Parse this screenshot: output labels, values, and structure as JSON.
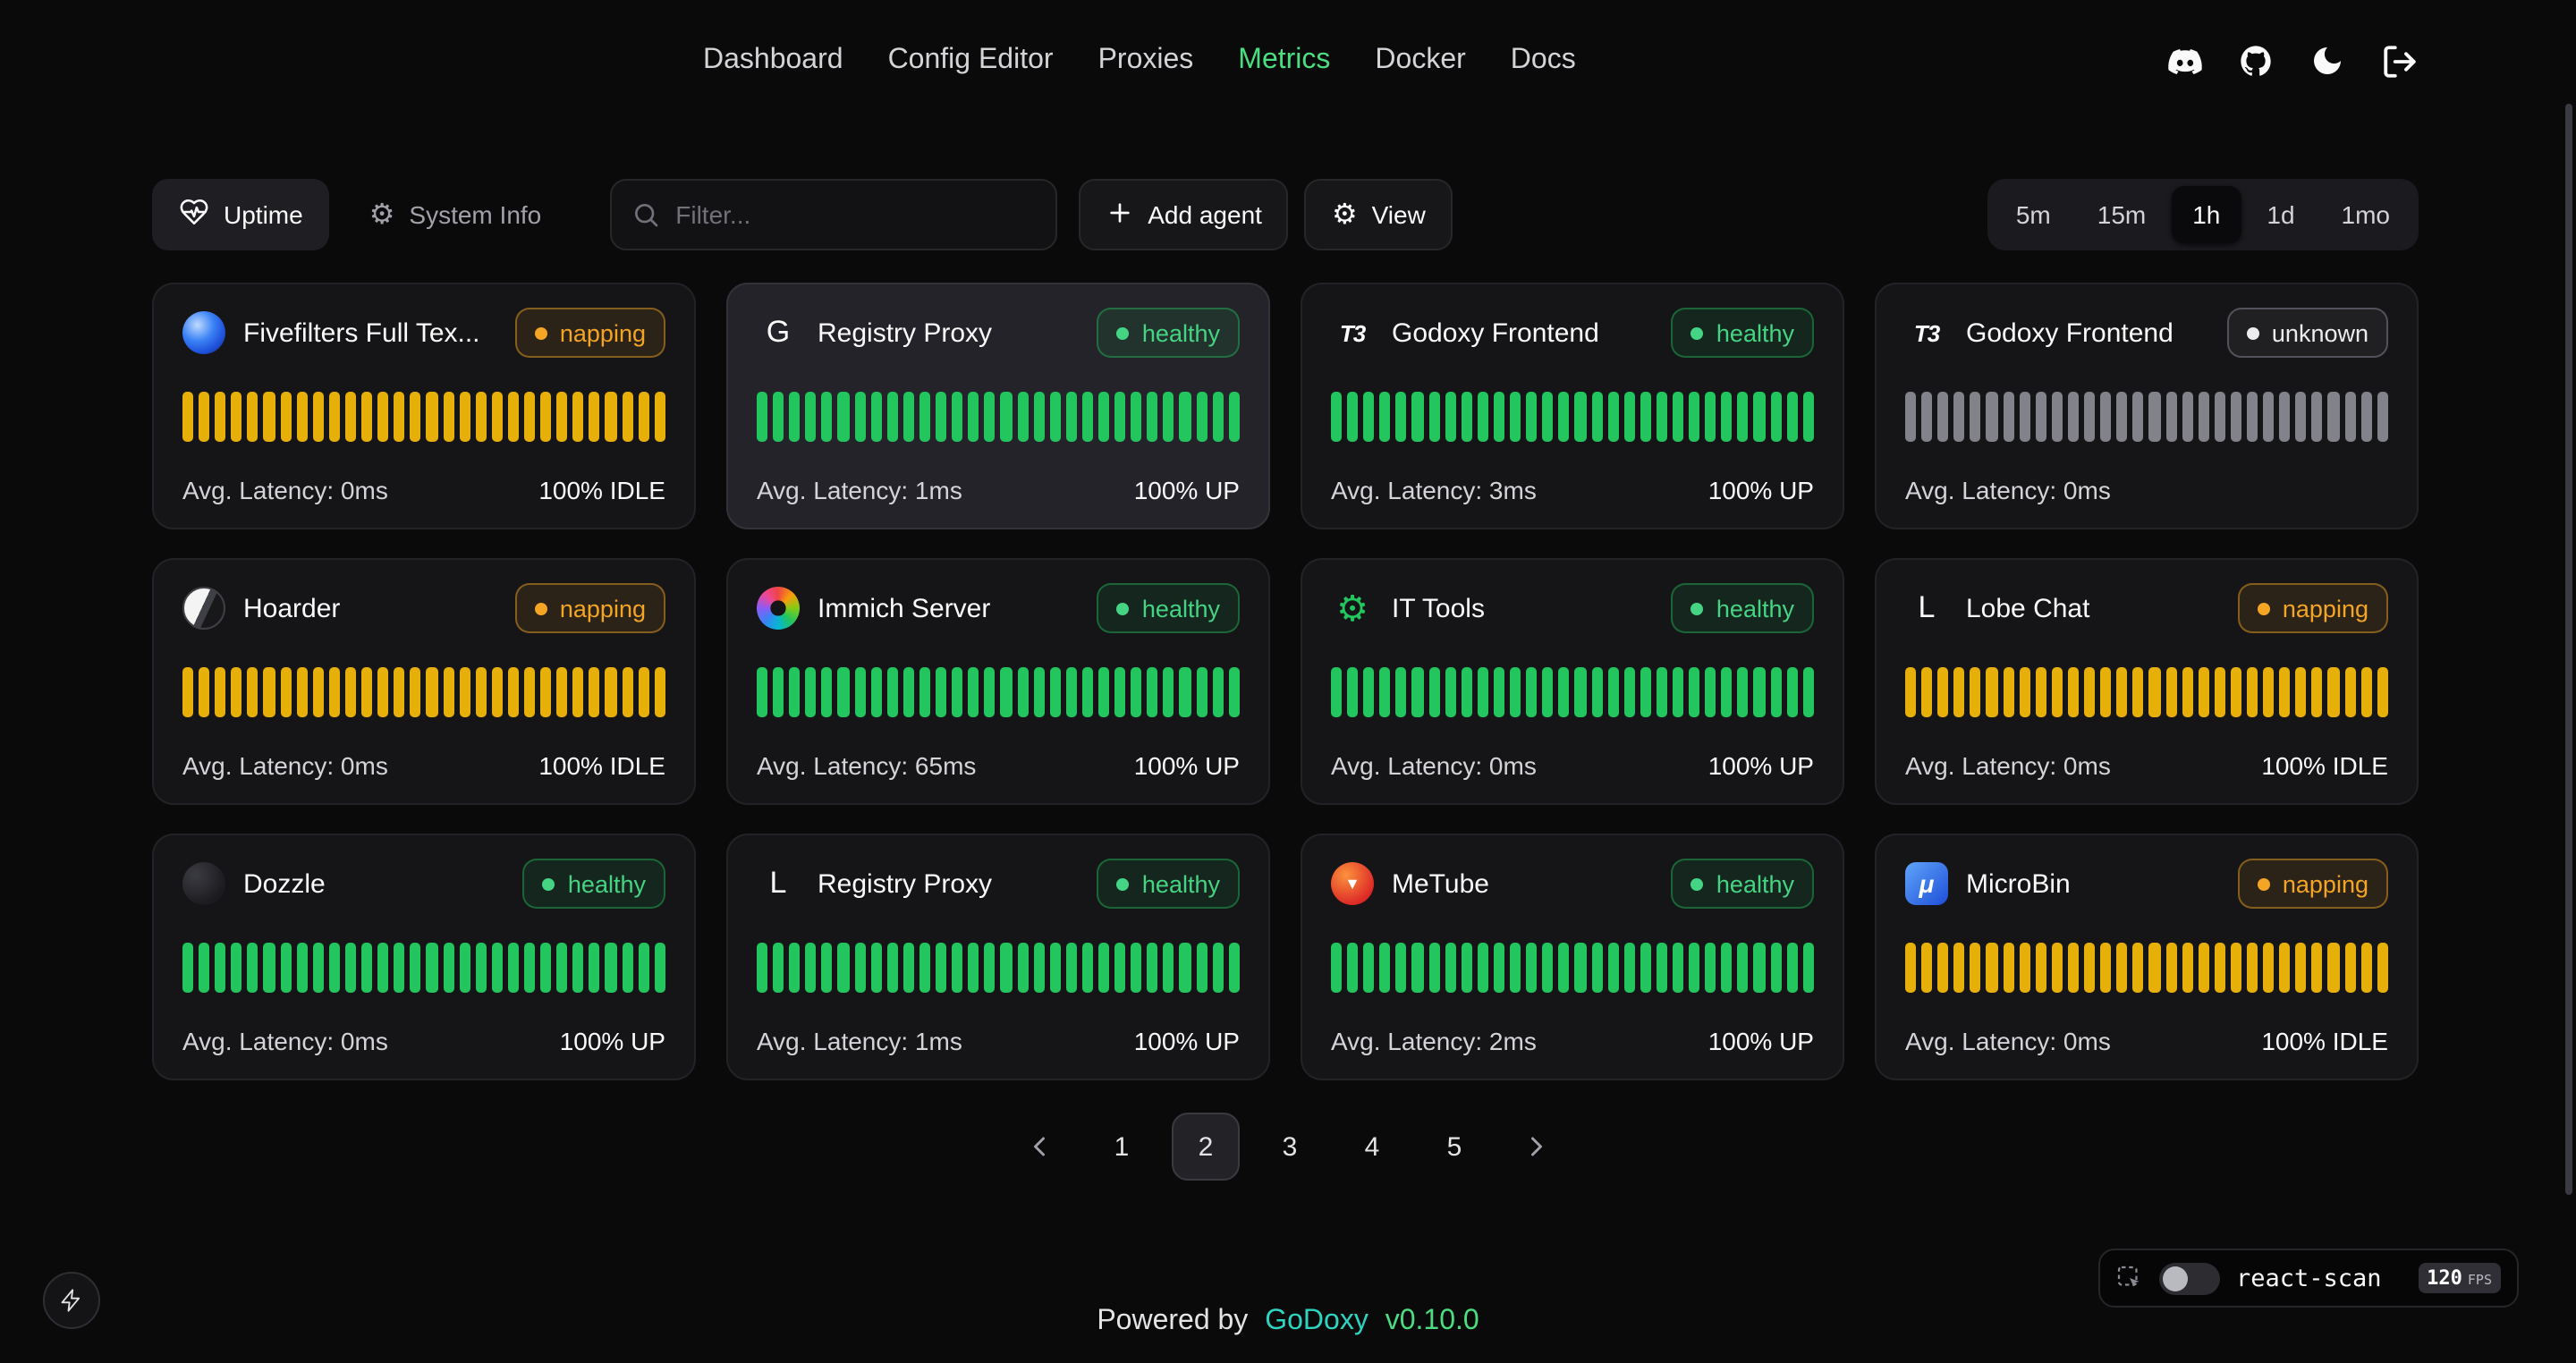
{
  "nav": {
    "items": [
      {
        "label": "Dashboard",
        "active": false
      },
      {
        "label": "Config Editor",
        "active": false
      },
      {
        "label": "Proxies",
        "active": false
      },
      {
        "label": "Metrics",
        "active": true
      },
      {
        "label": "Docker",
        "active": false
      },
      {
        "label": "Docs",
        "active": false
      }
    ],
    "icons": [
      "discord",
      "github",
      "dark-mode",
      "logout"
    ]
  },
  "toolbar": {
    "uptime_label": "Uptime",
    "system_info_label": "System Info",
    "filter_placeholder": "Filter...",
    "add_agent_label": "Add agent",
    "view_label": "View",
    "time_ranges": [
      "5m",
      "15m",
      "1h",
      "1d",
      "1mo"
    ],
    "active_time_range": "1h"
  },
  "cards": [
    {
      "name": "Fivefilters Full Tex...",
      "status": "napping",
      "latency": "Avg. Latency: 0ms",
      "uptime": "100% IDLE",
      "bar_color": "yellow",
      "bar_count": 30,
      "highlighted": false,
      "icon": {
        "kind": "fivefilters"
      }
    },
    {
      "name": "Registry Proxy",
      "status": "healthy",
      "latency": "Avg. Latency: 1ms",
      "uptime": "100% UP",
      "bar_color": "green",
      "bar_count": 30,
      "highlighted": true,
      "icon": {
        "kind": "letter",
        "text": "G"
      }
    },
    {
      "name": "Godoxy Frontend",
      "status": "healthy",
      "latency": "Avg. Latency: 3ms",
      "uptime": "100% UP",
      "bar_color": "green",
      "bar_count": 30,
      "highlighted": false,
      "icon": {
        "kind": "t3",
        "text": "T3"
      }
    },
    {
      "name": "Godoxy Frontend",
      "status": "unknown",
      "latency": "Avg. Latency: 0ms",
      "uptime": "",
      "bar_color": "gray",
      "bar_count": 30,
      "highlighted": false,
      "icon": {
        "kind": "t3",
        "text": "T3"
      }
    },
    {
      "name": "Hoarder",
      "status": "napping",
      "latency": "Avg. Latency: 0ms",
      "uptime": "100% IDLE",
      "bar_color": "yellow",
      "bar_count": 30,
      "highlighted": false,
      "icon": {
        "kind": "hoarder"
      }
    },
    {
      "name": "Immich Server",
      "status": "healthy",
      "latency": "Avg. Latency: 65ms",
      "uptime": "100% UP",
      "bar_color": "green",
      "bar_count": 30,
      "highlighted": false,
      "icon": {
        "kind": "immich"
      }
    },
    {
      "name": "IT Tools",
      "status": "healthy",
      "latency": "Avg. Latency: 0ms",
      "uptime": "100% UP",
      "bar_color": "green",
      "bar_count": 30,
      "highlighted": false,
      "icon": {
        "kind": "ittools",
        "text": "⚙"
      }
    },
    {
      "name": "Lobe Chat",
      "status": "napping",
      "latency": "Avg. Latency: 0ms",
      "uptime": "100% IDLE",
      "bar_color": "yellow",
      "bar_count": 30,
      "highlighted": false,
      "icon": {
        "kind": "letter",
        "text": "L"
      }
    },
    {
      "name": "Dozzle",
      "status": "healthy",
      "latency": "Avg. Latency: 0ms",
      "uptime": "100% UP",
      "bar_color": "green",
      "bar_count": 30,
      "highlighted": false,
      "icon": {
        "kind": "dozzle"
      }
    },
    {
      "name": "Registry Proxy",
      "status": "healthy",
      "latency": "Avg. Latency: 1ms",
      "uptime": "100% UP",
      "bar_color": "green",
      "bar_count": 30,
      "highlighted": false,
      "icon": {
        "kind": "letter",
        "text": "L"
      }
    },
    {
      "name": "MeTube",
      "status": "healthy",
      "latency": "Avg. Latency: 2ms",
      "uptime": "100% UP",
      "bar_color": "green",
      "bar_count": 30,
      "highlighted": false,
      "icon": {
        "kind": "metube",
        "text": "▼"
      }
    },
    {
      "name": "MicroBin",
      "status": "napping",
      "latency": "Avg. Latency: 0ms",
      "uptime": "100% IDLE",
      "bar_color": "yellow",
      "bar_count": 30,
      "highlighted": false,
      "icon": {
        "kind": "microbin",
        "text": "μ"
      }
    }
  ],
  "pagination": {
    "pages": [
      "1",
      "2",
      "3",
      "4",
      "5"
    ],
    "active": "2"
  },
  "footer": {
    "powered_by": "Powered by",
    "brand": "GoDoxy",
    "version": "v0.10.0"
  },
  "react_scan": {
    "label": "react-scan",
    "fps": "120",
    "fps_unit": "FPS"
  },
  "colors": {
    "accent_green": "#4ade80",
    "bar_green": "#22c55e",
    "bar_yellow": "#e7b008",
    "bar_gray": "#82828b",
    "badge_napping": "#f5a524",
    "badge_healthy": "#45d483",
    "brand_teal": "#2dd4bf"
  }
}
